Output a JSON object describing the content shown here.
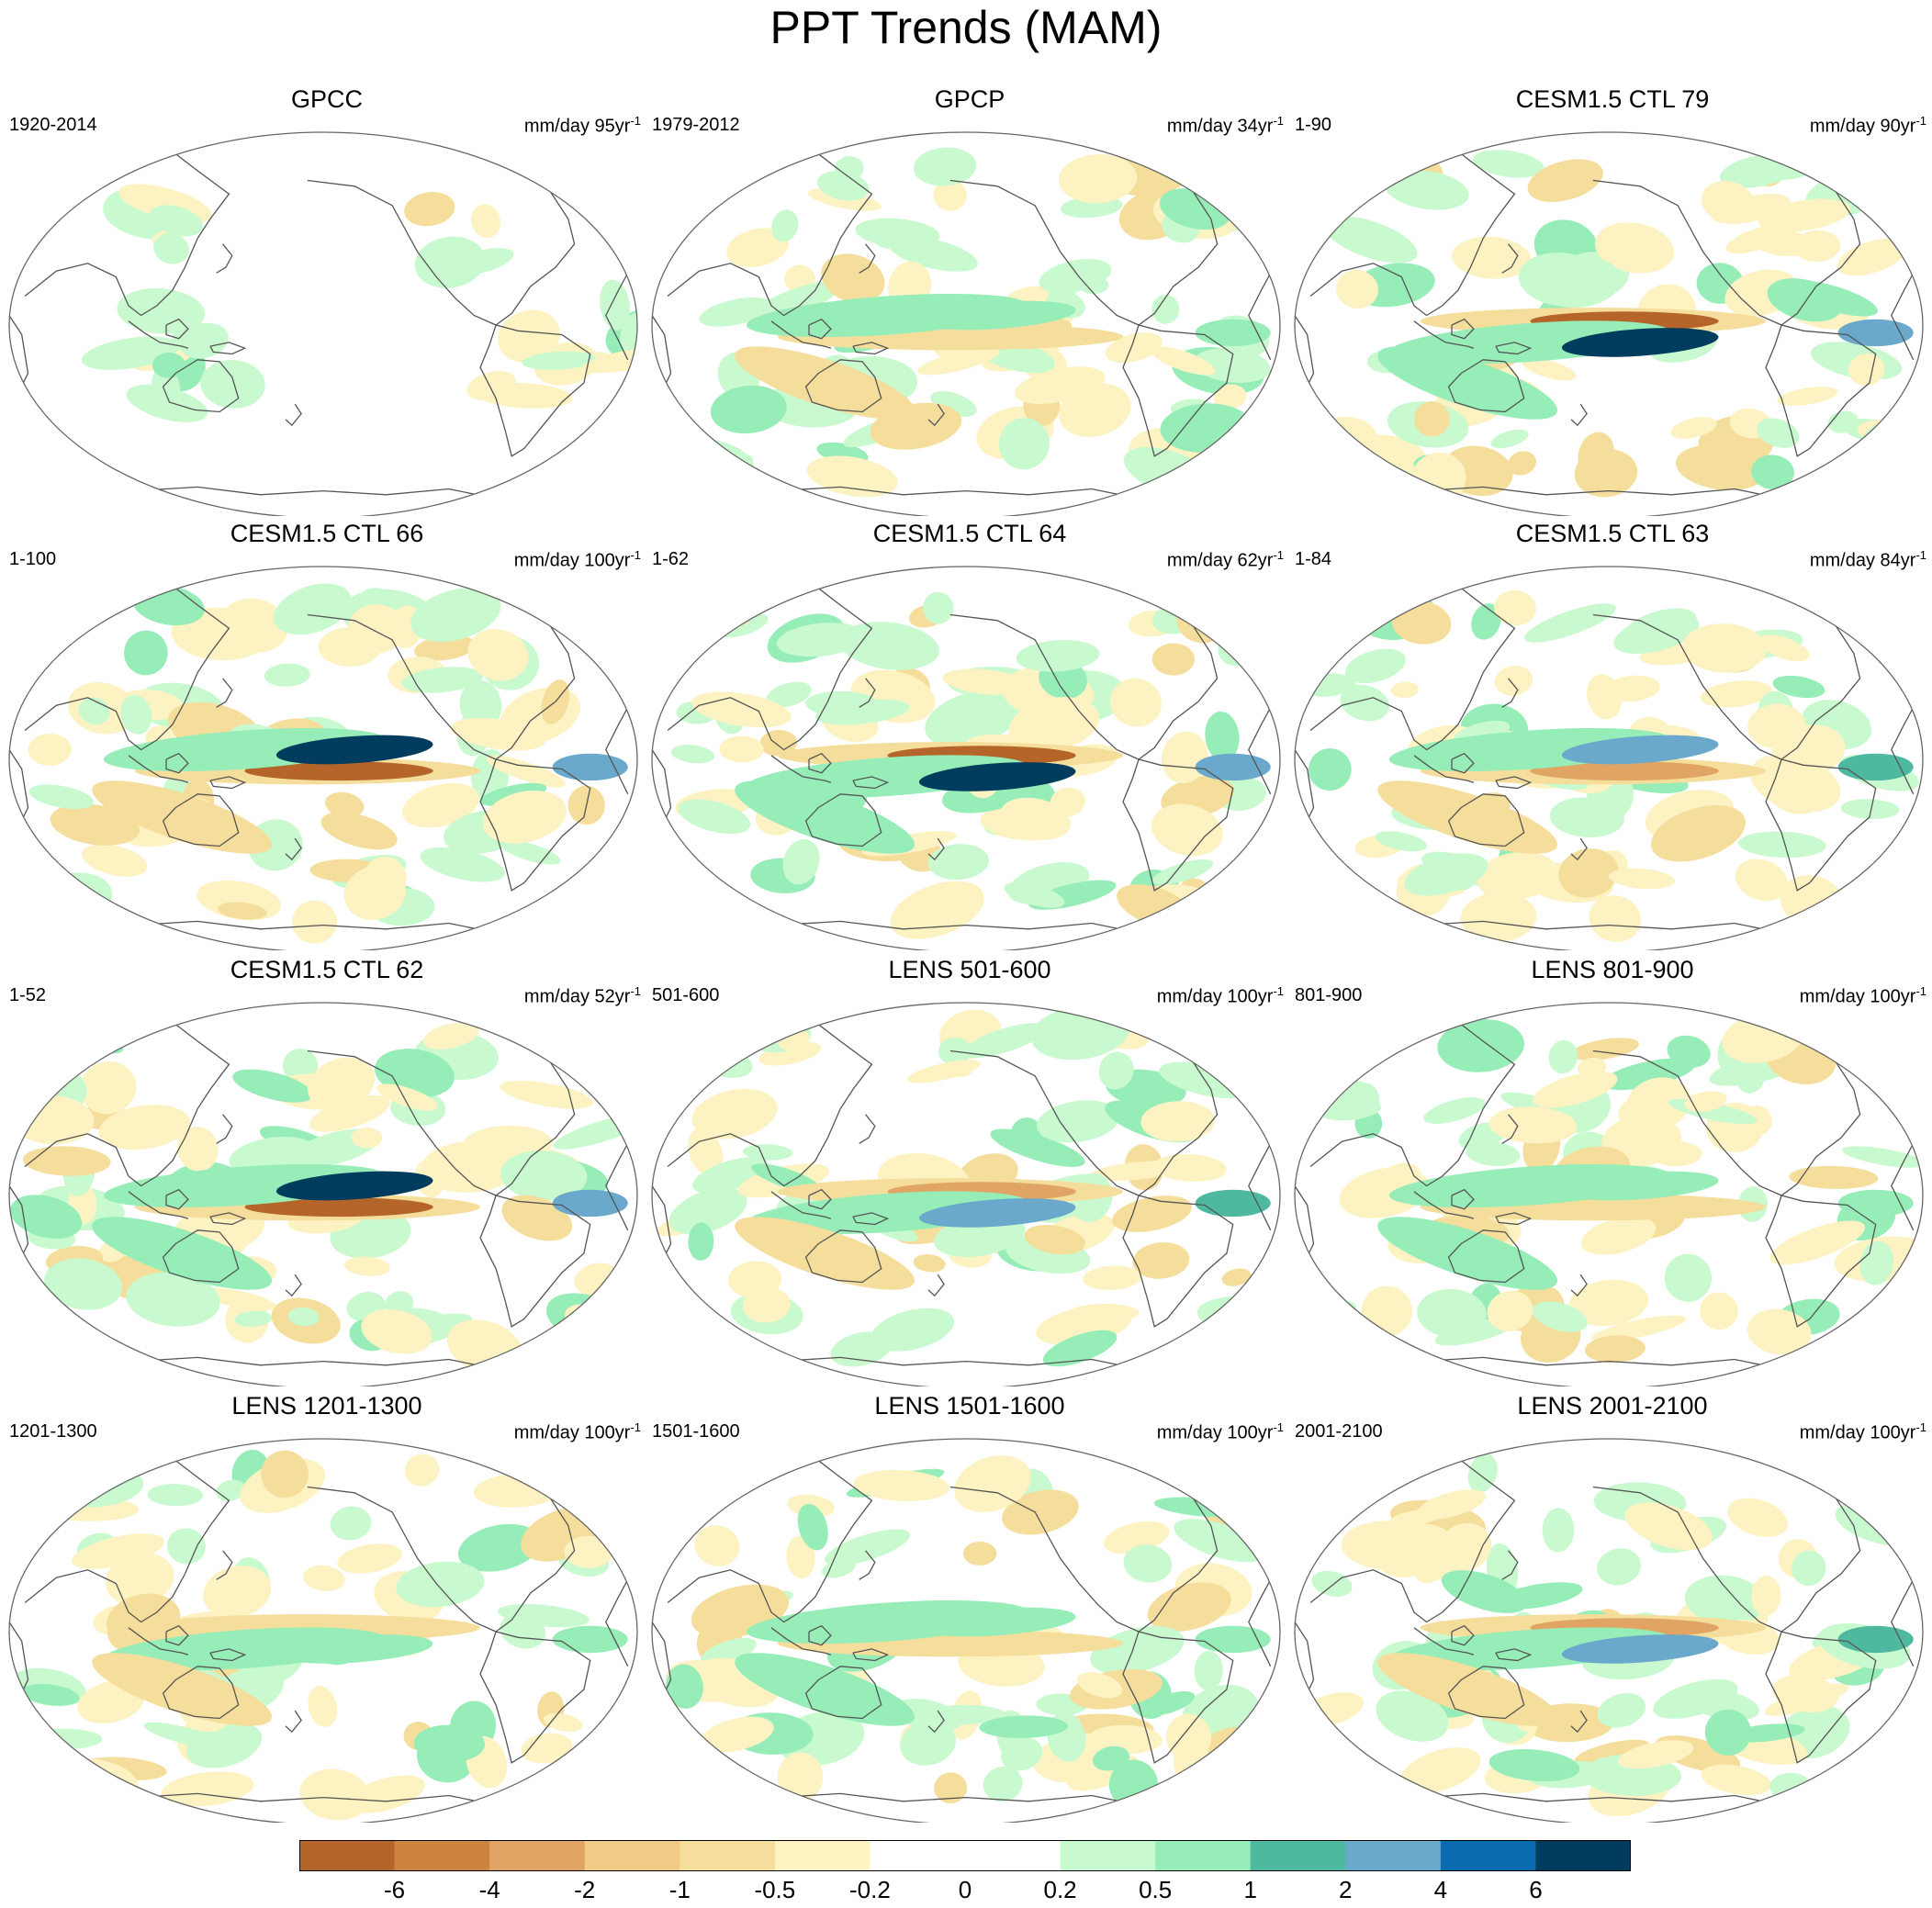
{
  "title": "PPT Trends (MAM)",
  "panels": [
    {
      "title": "GPCC",
      "period": "1920-2014",
      "units": "mm/day",
      "per": "95yr",
      "exp": "-1",
      "style": "obs-land"
    },
    {
      "title": "GPCP",
      "period": "1979-2012",
      "units": "mm/day",
      "per": "34yr",
      "exp": "-1",
      "style": "obs"
    },
    {
      "title": "CESM1.5 CTL 79",
      "period": "1-90",
      "units": "mm/day",
      "per": "90yr",
      "exp": "-1",
      "style": "strong"
    },
    {
      "title": "CESM1.5 CTL 66",
      "period": "1-100",
      "units": "mm/day",
      "per": "100yr",
      "exp": "-1",
      "style": "strong"
    },
    {
      "title": "CESM1.5 CTL 64",
      "period": "1-62",
      "units": "mm/day",
      "per": "62yr",
      "exp": "-1",
      "style": "strong"
    },
    {
      "title": "CESM1.5 CTL 63",
      "period": "1-84",
      "units": "mm/day",
      "per": "84yr",
      "exp": "-1",
      "style": "medium"
    },
    {
      "title": "CESM1.5 CTL 62",
      "period": "1-52",
      "units": "mm/day",
      "per": "52yr",
      "exp": "-1",
      "style": "strong"
    },
    {
      "title": "LENS 501-600",
      "period": "501-600",
      "units": "mm/day",
      "per": "100yr",
      "exp": "-1",
      "style": "medium"
    },
    {
      "title": "LENS 801-900",
      "period": "801-900",
      "units": "mm/day",
      "per": "100yr",
      "exp": "-1",
      "style": "weak"
    },
    {
      "title": "LENS 1201-1300",
      "period": "1201-1300",
      "units": "mm/day",
      "per": "100yr",
      "exp": "-1",
      "style": "weak"
    },
    {
      "title": "LENS 1501-1600",
      "period": "1501-1600",
      "units": "mm/day",
      "per": "100yr",
      "exp": "-1",
      "style": "weak"
    },
    {
      "title": "LENS 2001-2100",
      "period": "2001-2100",
      "units": "mm/day",
      "per": "100yr",
      "exp": "-1",
      "style": "medium"
    }
  ],
  "colorbar": {
    "colors": [
      "#b5652a",
      "#cd843f",
      "#e0a564",
      "#f2cb87",
      "#f5dd9b",
      "#fdf2c2",
      "#ffffff",
      "#ffffff",
      "#c9f9cf",
      "#96edb8",
      "#4fb99f",
      "#6aa9cc",
      "#0a6cae",
      "#003c5d"
    ],
    "labels": [
      "-6",
      "-4",
      "-2",
      "-1",
      "-0.5",
      "-0.2",
      "0",
      "0.2",
      "0.5",
      "1",
      "2",
      "4",
      "6"
    ]
  }
}
